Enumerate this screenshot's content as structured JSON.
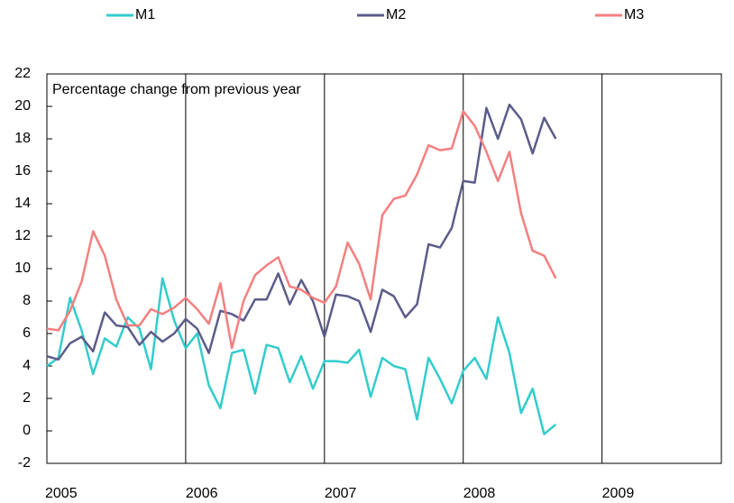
{
  "chart_data": {
    "type": "line",
    "annotation": "Percentage change from previous year",
    "x": [
      2005,
      2005.083,
      2005.167,
      2005.25,
      2005.333,
      2005.417,
      2005.5,
      2005.583,
      2005.667,
      2005.75,
      2005.833,
      2005.917,
      2006,
      2006.083,
      2006.167,
      2006.25,
      2006.333,
      2006.417,
      2006.5,
      2006.583,
      2006.667,
      2006.75,
      2006.833,
      2006.917,
      2007,
      2007.083,
      2007.167,
      2007.25,
      2007.333,
      2007.417,
      2007.5,
      2007.583,
      2007.667,
      2007.75,
      2007.833,
      2007.917,
      2008,
      2008.083,
      2008.167,
      2008.25,
      2008.333,
      2008.417,
      2008.5,
      2008.583,
      2008.667
    ],
    "series": [
      {
        "name": "M1",
        "color": "#33cccc",
        "values": [
          4.0,
          4.5,
          8.2,
          6.2,
          3.5,
          5.7,
          5.2,
          7.0,
          6.3,
          3.8,
          9.4,
          6.8,
          5.1,
          6.0,
          2.8,
          1.4,
          4.8,
          5.0,
          2.3,
          5.3,
          5.1,
          3.0,
          4.6,
          2.6,
          4.3,
          4.3,
          4.2,
          5.0,
          2.1,
          4.5,
          4.0,
          3.8,
          0.7,
          4.5,
          3.2,
          1.7,
          3.7,
          4.5,
          3.2,
          7.0,
          4.8,
          1.1,
          2.6,
          -0.2,
          0.4
        ]
      },
      {
        "name": "M2",
        "color": "#5c5c8a",
        "values": [
          4.6,
          4.4,
          5.4,
          5.8,
          4.9,
          7.3,
          6.5,
          6.4,
          5.3,
          6.1,
          5.5,
          6.0,
          6.9,
          6.3,
          4.8,
          7.4,
          7.2,
          6.8,
          8.1,
          8.1,
          9.7,
          7.8,
          9.3,
          8.0,
          5.8,
          8.4,
          8.3,
          8.0,
          6.1,
          8.7,
          8.3,
          7.0,
          7.8,
          11.5,
          11.3,
          12.5,
          15.4,
          15.3,
          19.9,
          18.0,
          20.1,
          19.2,
          17.1,
          19.3,
          18.0
        ]
      },
      {
        "name": "M3",
        "color": "#f47f7f",
        "values": [
          6.3,
          6.2,
          7.4,
          9.2,
          12.3,
          10.8,
          8.1,
          6.5,
          6.5,
          7.5,
          7.2,
          7.6,
          8.2,
          7.5,
          6.6,
          9.1,
          5.1,
          8.0,
          9.6,
          10.2,
          10.7,
          8.9,
          8.7,
          8.2,
          7.9,
          8.9,
          11.6,
          10.3,
          8.1,
          13.3,
          14.3,
          14.5,
          15.8,
          17.6,
          17.3,
          17.4,
          19.7,
          18.8,
          17.2,
          15.4,
          17.2,
          13.4,
          11.1,
          10.8,
          9.4
        ]
      }
    ],
    "xlim": [
      2005,
      2009.86
    ],
    "xticks": [
      2005,
      2006,
      2007,
      2008,
      2009
    ],
    "ylim": [
      -2,
      22
    ],
    "yticks": [
      -2,
      0,
      2,
      4,
      6,
      8,
      10,
      12,
      14,
      16,
      18,
      20,
      22
    ],
    "xgrid": true
  }
}
